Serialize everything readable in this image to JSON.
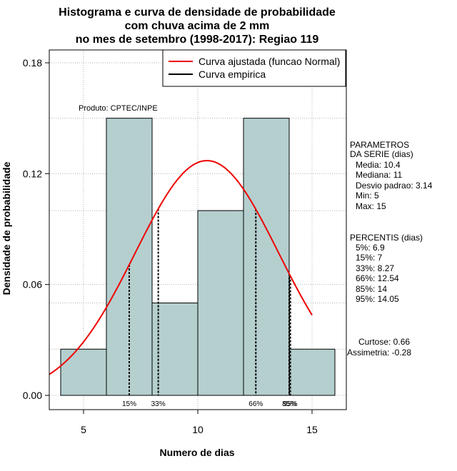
{
  "chart_data": {
    "type": "bar",
    "title_lines": [
      "Histograma e curva de densidade de probabilidade",
      "com chuva acima de 2 mm",
      "no mes de setembro (1998-2017): Regiao 119"
    ],
    "xlabel": "Numero de dias",
    "ylabel": "Densidade de probabilidade",
    "xlim": [
      3.5,
      16.5
    ],
    "ylim": [
      0.0,
      0.185
    ],
    "xticks": [
      5,
      10,
      15
    ],
    "yticks": [
      0.0,
      0.06,
      0.12,
      0.18
    ],
    "ytick_labels": [
      "0.00",
      "0.06",
      "0.12",
      "0.18"
    ],
    "grid": true,
    "bar_color": "#b5cfcf",
    "bins": [
      {
        "x0": 4,
        "x1": 6,
        "density": 0.025
      },
      {
        "x0": 6,
        "x1": 8,
        "density": 0.15
      },
      {
        "x0": 8,
        "x1": 10,
        "density": 0.05
      },
      {
        "x0": 10,
        "x1": 12,
        "density": 0.1
      },
      {
        "x0": 12,
        "x1": 14,
        "density": 0.15
      },
      {
        "x0": 14,
        "x1": 16,
        "density": 0.025
      }
    ],
    "normal_fit": {
      "name": "Curva ajustada (funcao Normal)",
      "color": "#ee0000",
      "mean": 10.4,
      "sd": 3.14,
      "x_range": [
        3.5,
        15.0
      ]
    },
    "empirical": {
      "name": "Curva empirica",
      "color": "#000000"
    },
    "percentile_lines": [
      {
        "x": 7,
        "label": "15%"
      },
      {
        "x": 8.27,
        "label": "33%"
      },
      {
        "x": 12.54,
        "label": "66%"
      },
      {
        "x": 14,
        "label": "85%"
      },
      {
        "x": 14.05,
        "label": "95%"
      }
    ],
    "annotation": "Produto: CPTEC/INPE",
    "legend_position": "top-right"
  },
  "stats_panel": {
    "params_title_1": "PARAMETROS",
    "params_title_2": "DA SERIE (dias)",
    "params": [
      "Media: 10.4",
      "Mediana: 11",
      "Desvio padrao: 3.14",
      "Min: 5",
      "Max: 15"
    ],
    "pct_title": "PERCENTIS (dias)",
    "percentiles": [
      "5%: 6.9",
      "15%: 7",
      "33%: 8.27",
      "66%: 12.54",
      "85%: 14",
      "95%: 14.05"
    ],
    "curtose": "Curtose: 0.66",
    "assimetria": "Assimetria: -0.28"
  }
}
